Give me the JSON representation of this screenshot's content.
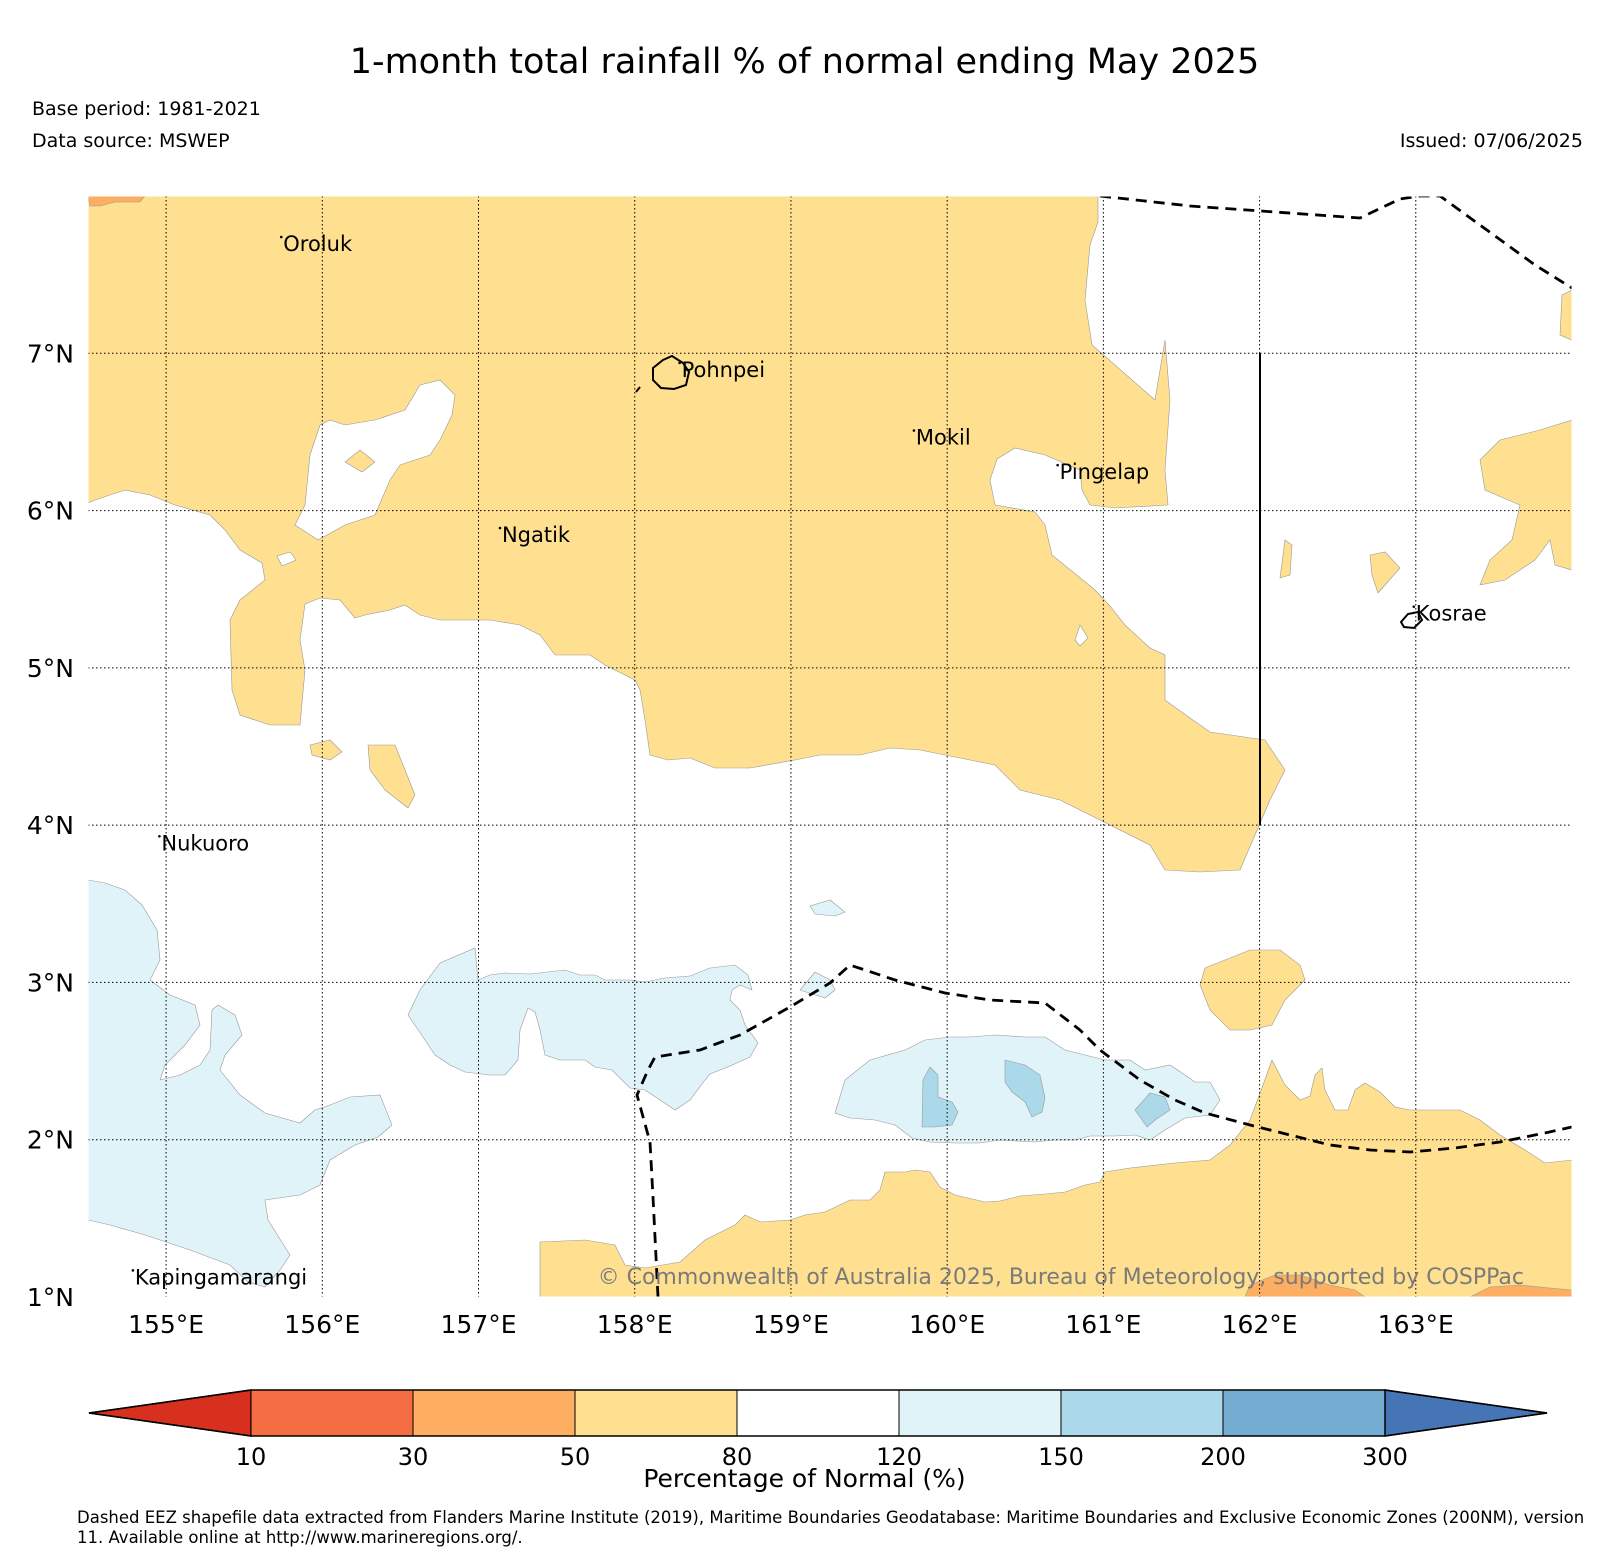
{
  "title": "1-month total rainfall % of normal ending May 2025",
  "base_period": "Base period: 1981-2021",
  "data_source": "Data source: MSWEP",
  "issued": "Issued: 07/06/2025",
  "map": {
    "lon_range": [
      154.5,
      164.0
    ],
    "lat_range": [
      1.0,
      8.0
    ],
    "lon_ticks": [
      {
        "value": 155,
        "label": "155°E"
      },
      {
        "value": 156,
        "label": "156°E"
      },
      {
        "value": 157,
        "label": "157°E"
      },
      {
        "value": 158,
        "label": "158°E"
      },
      {
        "value": 159,
        "label": "159°E"
      },
      {
        "value": 160,
        "label": "160°E"
      },
      {
        "value": 161,
        "label": "161°E"
      },
      {
        "value": 162,
        "label": "162°E"
      },
      {
        "value": 163,
        "label": "163°E"
      }
    ],
    "lat_ticks": [
      {
        "value": 1,
        "label": "1°N"
      },
      {
        "value": 2,
        "label": "2°N"
      },
      {
        "value": 3,
        "label": "3°N"
      },
      {
        "value": 4,
        "label": "4°N"
      },
      {
        "value": 5,
        "label": "5°N"
      },
      {
        "value": 6,
        "label": "6°N"
      },
      {
        "value": 7,
        "label": "7°N"
      }
    ],
    "places": [
      {
        "name": "Oroluk",
        "lon": 155.75,
        "lat": 7.65
      },
      {
        "name": "Pohnpei",
        "lon": 158.3,
        "lat": 6.85
      },
      {
        "name": "Mokil",
        "lon": 159.8,
        "lat": 6.42
      },
      {
        "name": "Pingelap",
        "lon": 160.72,
        "lat": 6.2
      },
      {
        "name": "Ngatik",
        "lon": 157.15,
        "lat": 5.8
      },
      {
        "name": "Kosrae",
        "lon": 163.0,
        "lat": 5.3
      },
      {
        "name": "Nukuoro",
        "lon": 154.97,
        "lat": 3.84
      },
      {
        "name": "Kapingamarangi",
        "lon": 154.8,
        "lat": 1.08
      }
    ],
    "grid": "dotted",
    "eez_boundaries": "dashed",
    "copyright": "© Commonwealth of Australia 2025, Bureau of Meteorology, supported by COSPPac"
  },
  "colorbar": {
    "title": "Percentage of Normal (%)",
    "boundaries": [
      "10",
      "30",
      "50",
      "80",
      "120",
      "150",
      "200",
      "300"
    ],
    "colors": [
      "#d7301f",
      "#f46d43",
      "#fdae61",
      "#fee090",
      "#ffffff",
      "#e0f3f8",
      "#abd9e9",
      "#74add1",
      "#4575b4"
    ],
    "extend": "both"
  },
  "footnote": "Dashed EEZ shapefile data extracted from Flanders Marine Institute (2019), Maritime Boundaries Geodatabase: Maritime Boundaries and Exclusive Economic Zones (200NM), version 11. Available online at http://www.marineregions.org/."
}
